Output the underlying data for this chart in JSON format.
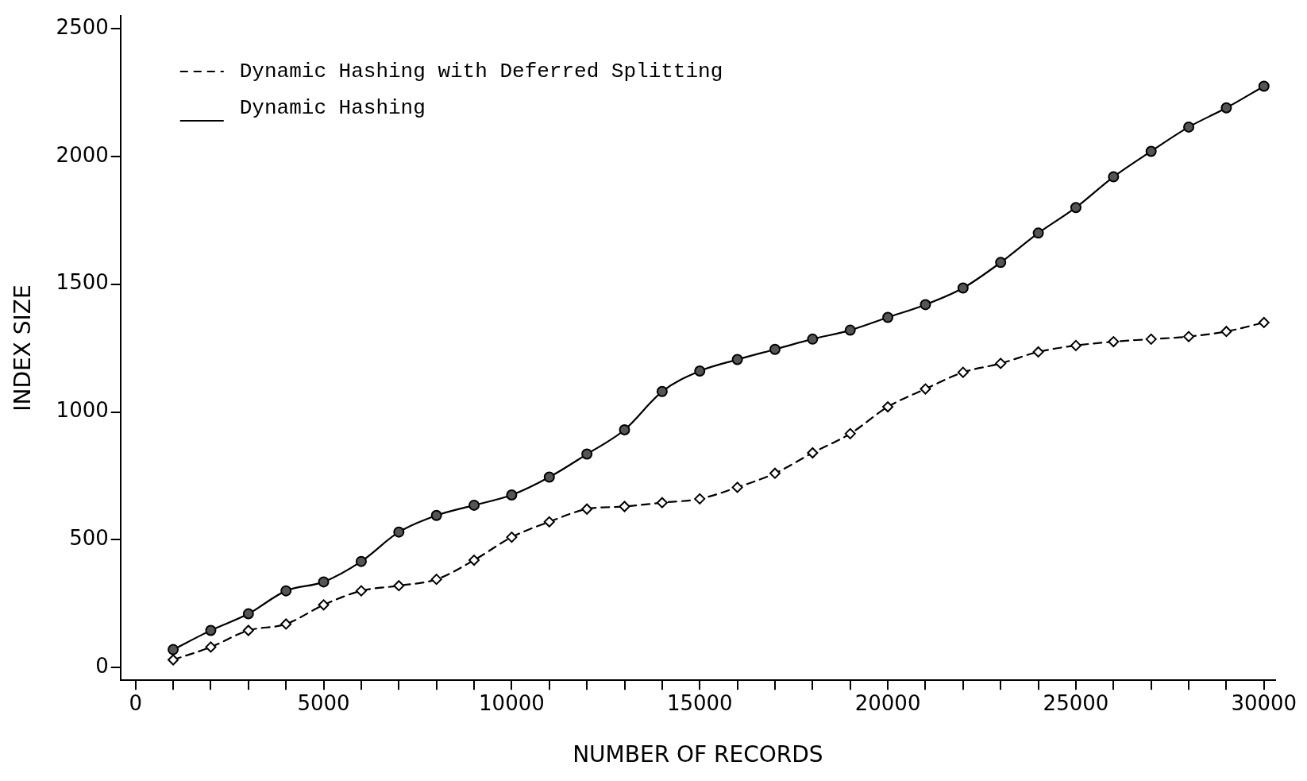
{
  "chart_data": {
    "type": "line",
    "xlabel": "NUMBER OF RECORDS",
    "ylabel": "INDEX SIZE",
    "x": [
      1000,
      2000,
      3000,
      4000,
      5000,
      6000,
      7000,
      8000,
      9000,
      10000,
      11000,
      12000,
      13000,
      14000,
      15000,
      16000,
      17000,
      18000,
      19000,
      20000,
      21000,
      22000,
      23000,
      24000,
      25000,
      26000,
      27000,
      28000,
      29000,
      30000
    ],
    "series": [
      {
        "name": "Dynamic Hashing with Deferred Splitting",
        "color": "#000000",
        "line_style": "dashed",
        "marker": "diamond",
        "values": [
          30,
          80,
          145,
          170,
          245,
          300,
          320,
          345,
          420,
          510,
          570,
          620,
          630,
          645,
          660,
          705,
          760,
          840,
          915,
          1020,
          1090,
          1155,
          1190,
          1235,
          1260,
          1275,
          1285,
          1295,
          1315,
          1350
        ]
      },
      {
        "name": "Dynamic Hashing",
        "color": "#000000",
        "line_style": "solid",
        "marker": "circle",
        "values": [
          70,
          145,
          210,
          300,
          335,
          415,
          530,
          595,
          635,
          675,
          745,
          835,
          930,
          1080,
          1160,
          1205,
          1245,
          1285,
          1320,
          1370,
          1420,
          1485,
          1585,
          1700,
          1800,
          1920,
          2020,
          2115,
          2190,
          2275
        ]
      }
    ],
    "xlim": [
      -400,
      30300
    ],
    "ylim": [
      -50,
      2550
    ],
    "xticks": [
      0,
      {
        "value": 1000,
        "label": null
      },
      {
        "value": 2000,
        "label": null
      },
      {
        "value": 3000,
        "label": null
      },
      {
        "value": 4000,
        "label": null
      },
      5000,
      {
        "value": 6000,
        "label": null
      },
      {
        "value": 7000,
        "label": null
      },
      {
        "value": 8000,
        "label": null
      },
      {
        "value": 9000,
        "label": null
      },
      10000,
      {
        "value": 11000,
        "label": null
      },
      {
        "value": 12000,
        "label": null
      },
      {
        "value": 13000,
        "label": null
      },
      {
        "value": 14000,
        "label": null
      },
      15000,
      {
        "value": 16000,
        "label": null
      },
      {
        "value": 17000,
        "label": null
      },
      {
        "value": 18000,
        "label": null
      },
      {
        "value": 19000,
        "label": null
      },
      20000,
      {
        "value": 21000,
        "label": null
      },
      {
        "value": 22000,
        "label": null
      },
      {
        "value": 23000,
        "label": null
      },
      {
        "value": 24000,
        "label": null
      },
      25000,
      {
        "value": 26000,
        "label": null
      },
      {
        "value": 27000,
        "label": null
      },
      {
        "value": 28000,
        "label": null
      },
      {
        "value": 29000,
        "label": null
      },
      30000
    ],
    "yticks": [
      0,
      500,
      1000,
      1500,
      2000,
      2500
    ],
    "grid": false,
    "legend": "top left"
  }
}
